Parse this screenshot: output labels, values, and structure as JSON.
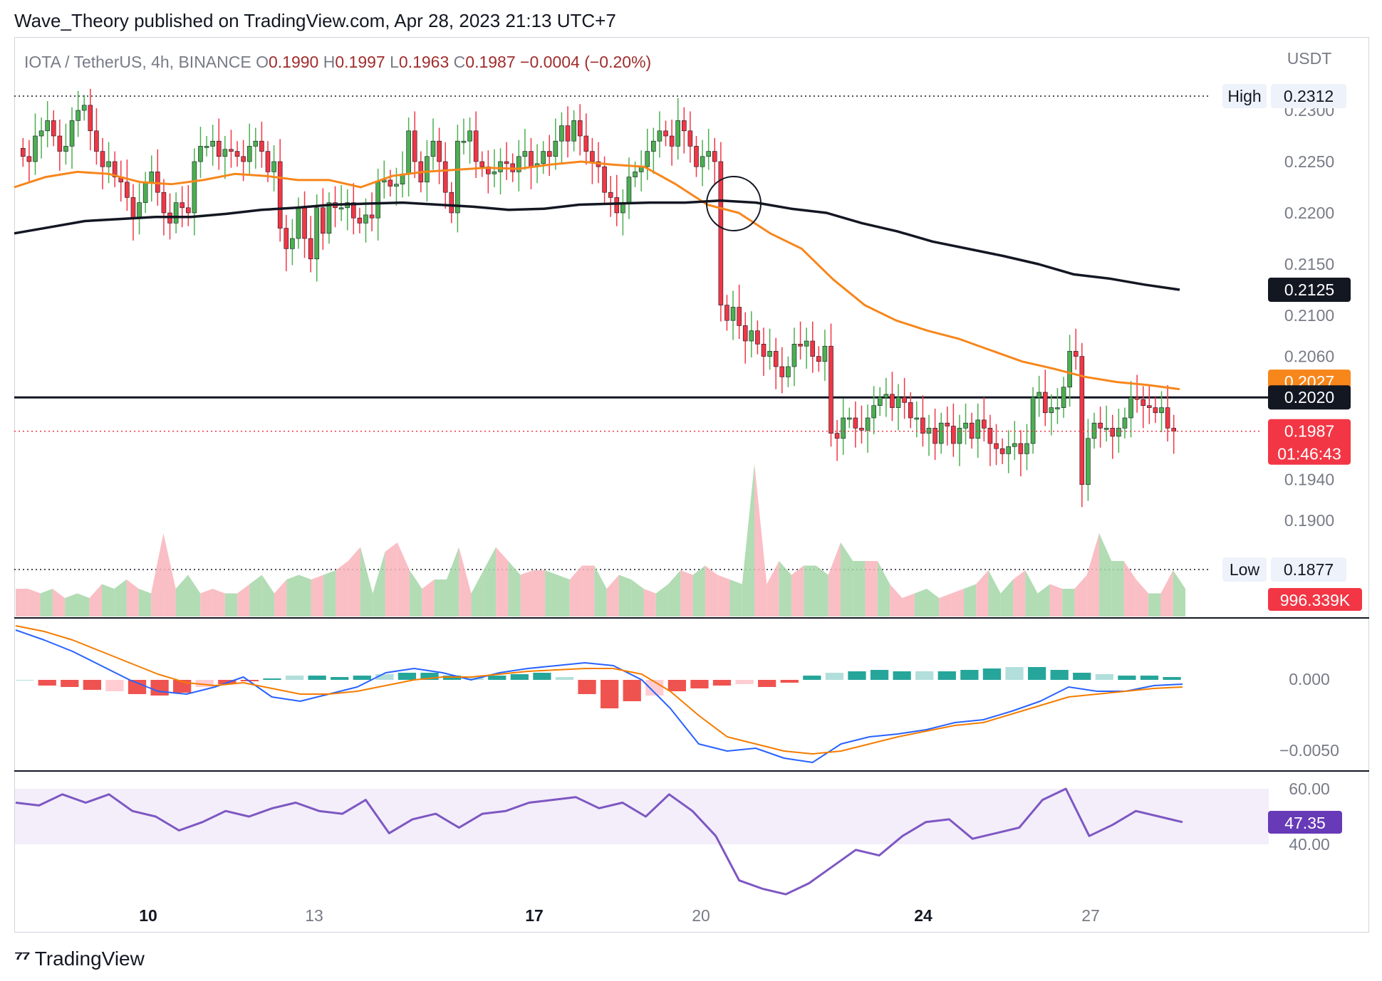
{
  "header": {
    "publisher_line": "Wave_Theory published on TradingView.com, Apr 28, 2023 21:13 UTC+7"
  },
  "legend": {
    "symbol": "IOTA / TetherUS, 4h, BINANCE",
    "o_label": "O",
    "o_value": "0.1990",
    "h_label": "H",
    "h_value": "0.1997",
    "l_label": "L",
    "l_value": "0.1963",
    "c_label": "C",
    "c_value": "0.1987",
    "change": "−0.0004 (−0.20%)"
  },
  "colors": {
    "up": "#26a69a",
    "down": "#ef5350",
    "candle_up": "#4caf50",
    "candle_down": "#f23645",
    "ema_fast": "#f7861b",
    "ema_slow": "#131722",
    "macd": "#2962ff",
    "signal": "#f57c00",
    "rsi": "#7e57c2"
  },
  "footer": {
    "brand": "TradingView"
  },
  "chart_data": [
    {
      "type": "candlestick",
      "currency_label": "USDT",
      "y_ticks": [
        "0.2300",
        "0.2250",
        "0.2200",
        "0.2150",
        "0.2100",
        "0.2060",
        "0.1940",
        "0.1900"
      ],
      "x_ticks": [
        "10",
        "13",
        "17",
        "20",
        "24",
        "27"
      ],
      "high": {
        "label": "High",
        "value": "0.2312"
      },
      "low": {
        "label": "Low",
        "value": "0.1877"
      },
      "price_tags": {
        "ema200": "0.2125",
        "ema50": "0.2027",
        "support": "0.2020",
        "last": "0.1987",
        "countdown": "01:46:43",
        "volume": "996.339K"
      },
      "support_level": 0.202,
      "close_series": [
        0.2255,
        0.225,
        0.2275,
        0.228,
        0.229,
        0.2275,
        0.226,
        0.2265,
        0.229,
        0.23,
        0.2305,
        0.228,
        0.226,
        0.2245,
        0.225,
        0.2235,
        0.223,
        0.2215,
        0.2195,
        0.221,
        0.223,
        0.224,
        0.222,
        0.22,
        0.219,
        0.221,
        0.2205,
        0.22,
        0.225,
        0.2265,
        0.2265,
        0.227,
        0.2255,
        0.2262,
        0.226,
        0.2255,
        0.225,
        0.2265,
        0.227,
        0.226,
        0.224,
        0.225,
        0.2185,
        0.2165,
        0.2175,
        0.2205,
        0.2175,
        0.2155,
        0.2205,
        0.218,
        0.221,
        0.2205,
        0.2205,
        0.221,
        0.2195,
        0.219,
        0.2198,
        0.2195,
        0.223,
        0.2232,
        0.2226,
        0.2228,
        0.2238,
        0.228,
        0.225,
        0.223,
        0.2255,
        0.227,
        0.225,
        0.222,
        0.22,
        0.227,
        0.227,
        0.228,
        0.225,
        0.2245,
        0.2238,
        0.224,
        0.225,
        0.2248,
        0.224,
        0.2255,
        0.226,
        0.2245,
        0.2248,
        0.226,
        0.2255,
        0.227,
        0.2285,
        0.227,
        0.229,
        0.2275,
        0.226,
        0.225,
        0.2245,
        0.222,
        0.2215,
        0.22,
        0.221,
        0.2235,
        0.224,
        0.2245,
        0.226,
        0.227,
        0.228,
        0.2275,
        0.2265,
        0.229,
        0.228,
        0.2265,
        0.2245,
        0.2255,
        0.226,
        0.225,
        0.211,
        0.2095,
        0.2108,
        0.209,
        0.2075,
        0.2085,
        0.2072,
        0.206,
        0.2065,
        0.205,
        0.204,
        0.205,
        0.2072,
        0.207,
        0.2075,
        0.206,
        0.2055,
        0.207,
        0.1985,
        0.198,
        0.2,
        0.2,
        0.199,
        0.1988,
        0.2,
        0.2012,
        0.202,
        0.2023,
        0.201,
        0.202,
        0.2015,
        0.2,
        0.2,
        0.1985,
        0.199,
        0.1975,
        0.1995,
        0.1992,
        0.1975,
        0.199,
        0.1995,
        0.198,
        0.1998,
        0.199,
        0.1975,
        0.197,
        0.1965,
        0.1972,
        0.1975,
        0.1965,
        0.1975,
        0.202,
        0.2025,
        0.2005,
        0.201,
        0.201,
        0.203,
        0.2065,
        0.206,
        0.1935,
        0.198,
        0.1995,
        0.199,
        0.199,
        0.1982,
        0.199,
        0.2,
        0.202,
        0.2018,
        0.2012,
        0.201,
        0.2005,
        0.201,
        0.199,
        0.1987
      ],
      "ema50_series": [
        0.2225,
        0.2235,
        0.224,
        0.2238,
        0.223,
        0.2228,
        0.2232,
        0.2238,
        0.2236,
        0.2232,
        0.2232,
        0.2225,
        0.2236,
        0.224,
        0.2242,
        0.2244,
        0.2243,
        0.2247,
        0.225,
        0.2247,
        0.2245,
        0.2228,
        0.2208,
        0.22,
        0.218,
        0.2165,
        0.2135,
        0.211,
        0.2095,
        0.2085,
        0.2077,
        0.2066,
        0.2055,
        0.2048,
        0.204,
        0.2035,
        0.2032,
        0.2028
      ],
      "ema200_series": [
        0.218,
        0.2186,
        0.2192,
        0.2194,
        0.2196,
        0.2196,
        0.2199,
        0.2203,
        0.2205,
        0.2208,
        0.2209,
        0.221,
        0.2208,
        0.2206,
        0.2203,
        0.2204,
        0.2208,
        0.2209,
        0.221,
        0.221,
        0.2212,
        0.221,
        0.2204,
        0.22,
        0.219,
        0.2182,
        0.2172,
        0.2165,
        0.2158,
        0.215,
        0.214,
        0.2136,
        0.213,
        0.2125
      ]
    },
    {
      "type": "histogram",
      "name": "volume",
      "series": [
        {
          "name": "volume",
          "values": [
            30,
            30,
            25,
            30,
            20,
            25,
            20,
            35,
            30,
            40,
            30,
            25,
            90,
            30,
            45,
            25,
            30,
            25,
            25,
            35,
            45,
            25,
            40,
            45,
            40,
            45,
            50,
            60,
            75,
            25,
            70,
            80,
            50,
            30,
            40,
            40,
            75,
            25,
            50,
            75,
            60,
            45,
            50,
            50,
            45,
            40,
            55,
            55,
            30,
            45,
            40,
            30,
            25,
            35,
            50,
            45,
            55,
            45,
            40,
            35,
            165,
            35,
            60,
            45,
            55,
            55,
            45,
            80,
            60,
            60,
            60,
            35,
            20,
            25,
            30,
            20,
            25,
            30,
            35,
            50,
            25,
            40,
            50,
            25,
            35,
            30,
            30,
            45,
            90,
            60,
            60,
            40,
            25,
            25,
            50,
            30
          ]
        }
      ]
    },
    {
      "type": "line",
      "name": "MACD",
      "y_ticks": [
        "0.000",
        "−0.0050"
      ],
      "series": [
        {
          "name": "MACD",
          "values": [
            0.0035,
            0.0028,
            0.002,
            0.001,
            0.0,
            -0.0008,
            -0.001,
            -0.0005,
            0.0002,
            -0.0012,
            -0.0015,
            -0.001,
            -0.0005,
            0.0005,
            0.0008,
            0.0005,
            0.0,
            0.0005,
            0.0008,
            0.001,
            0.0012,
            0.001,
            0.0,
            -0.002,
            -0.0045,
            -0.005,
            -0.0048,
            -0.0055,
            -0.0058,
            -0.0045,
            -0.004,
            -0.0038,
            -0.0035,
            -0.003,
            -0.0028,
            -0.0022,
            -0.0015,
            -0.0005,
            -0.0008,
            -0.0008,
            -0.0004,
            -0.0003
          ]
        },
        {
          "name": "Signal",
          "values": [
            0.0038,
            0.0034,
            0.0028,
            0.002,
            0.0012,
            0.0004,
            -0.0002,
            -0.0004,
            -0.0002,
            -0.0006,
            -0.001,
            -0.001,
            -0.0008,
            -0.0004,
            0.0,
            0.0002,
            0.0002,
            0.0004,
            0.0006,
            0.0007,
            0.0008,
            0.0008,
            0.0004,
            -0.0008,
            -0.0025,
            -0.004,
            -0.0045,
            -0.005,
            -0.0052,
            -0.005,
            -0.0045,
            -0.004,
            -0.0036,
            -0.0032,
            -0.003,
            -0.0024,
            -0.0018,
            -0.0012,
            -0.001,
            -0.0008,
            -0.0006,
            -0.0005
          ]
        }
      ],
      "histogram": [
        0,
        -8,
        -10,
        -14,
        -16,
        -20,
        -22,
        -18,
        -10,
        -6,
        -2,
        2,
        6,
        6,
        4,
        6,
        8,
        10,
        10,
        6,
        4,
        6,
        8,
        10,
        4,
        -20,
        -40,
        -30,
        -22,
        -16,
        -12,
        -8,
        -6,
        -10,
        -4,
        6,
        10,
        12,
        14,
        12,
        12,
        12,
        14,
        16,
        18,
        18,
        14,
        10,
        8,
        6,
        6,
        4
      ]
    },
    {
      "type": "line",
      "name": "RSI",
      "y_ticks": [
        "60.00",
        "40.00"
      ],
      "current": "47.35",
      "band": [
        40,
        60
      ],
      "series": [
        {
          "name": "RSI",
          "values": [
            55,
            54,
            58,
            55,
            58,
            52,
            50,
            45,
            48,
            52,
            50,
            53,
            55,
            52,
            51,
            56,
            44,
            49,
            51,
            46,
            51,
            52,
            55,
            56,
            57,
            53,
            55,
            50,
            58,
            52,
            43,
            27,
            24,
            22,
            26,
            32,
            38,
            36,
            43,
            48,
            49,
            42,
            44,
            46,
            56,
            60,
            43,
            47,
            52,
            50,
            48
          ]
        }
      ]
    }
  ]
}
